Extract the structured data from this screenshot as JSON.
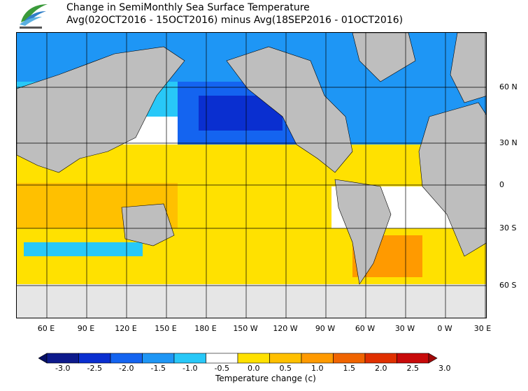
{
  "title": {
    "line1": "Change in SemiMonthly Sea Surface Temperature",
    "line2": "Avg(02OCT2016 - 15OCT2016) minus Avg(18SEP2016 - 01OCT2016)"
  },
  "logo": {
    "name": "leaf-logo",
    "colors": [
      "#3a9a3a",
      "#1e6fb8"
    ]
  },
  "lat_labels": [
    "60 N",
    "30 N",
    "0",
    "30 S",
    "60 S"
  ],
  "lon_labels": [
    "60 E",
    "90 E",
    "120 E",
    "150 E",
    "180 E",
    "150 W",
    "120 W",
    "90 W",
    "60 W",
    "30 W",
    "0 W",
    "30 E"
  ],
  "colorbar": {
    "title": "Temperature change  (c)",
    "ticks": [
      "-3.0",
      "-2.5",
      "-2.0",
      "-1.5",
      "-1.0",
      "-0.5",
      "0.0",
      "0.5",
      "1.0",
      "1.5",
      "2.0",
      "2.5",
      "3.0"
    ],
    "colors": [
      "#0d1a8c",
      "#0a2fd0",
      "#1464f0",
      "#1e96f5",
      "#28c8f8",
      "#ffffff",
      "#ffe100",
      "#ffc000",
      "#ff9a00",
      "#f06400",
      "#e03000",
      "#c80a0a"
    ],
    "under_color": "#071066",
    "over_color": "#a00808"
  },
  "map_colors": {
    "land": "#bebebe",
    "ice": "#e6e6e6",
    "grid": "#000000"
  }
}
